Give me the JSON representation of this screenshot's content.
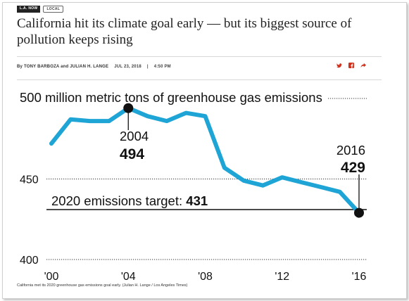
{
  "tags": {
    "section": "L.A. NOW",
    "subsection": "LOCAL"
  },
  "headline": "California hit its climate goal early — but its biggest source of pollution keeps rising",
  "byline": {
    "prefix": "By",
    "authors": "TONY BARBOZA and JULIAN H. LANGE",
    "date": "JUL 23, 2018",
    "separator": "|",
    "time": "4:50 PM"
  },
  "share": {
    "twitter_icon": "twitter-icon",
    "facebook_icon": "facebook-icon",
    "share_icon": "share-arrow-icon"
  },
  "colors": {
    "line": "#1ea5d6",
    "text": "#111111",
    "accent": "#d0321e"
  },
  "chart_data": {
    "type": "line",
    "title": "500 million metric tons of greenhouse gas emissions",
    "x": [
      2000,
      2001,
      2002,
      2003,
      2004,
      2005,
      2006,
      2007,
      2008,
      2009,
      2010,
      2011,
      2012,
      2013,
      2014,
      2015,
      2016
    ],
    "series": [
      {
        "values": [
          472,
          487,
          486,
          486,
          494,
          489,
          486,
          491,
          489,
          457,
          449,
          446,
          451,
          448,
          445,
          442,
          429
        ]
      }
    ],
    "xlim": [
      2000,
      2016
    ],
    "ylim": [
      400,
      500
    ],
    "x_tick_labels": [
      "'00",
      "'04",
      "'08",
      "'12",
      "'16"
    ],
    "x_tick_values": [
      2000,
      2004,
      2008,
      2012,
      2016
    ],
    "y_tick_labels": [
      "400",
      "450"
    ],
    "y_tick_values": [
      400,
      450
    ],
    "annotations": [
      {
        "year_label": "2004",
        "value_label": "494",
        "x": 2004,
        "y": 494
      },
      {
        "year_label": "2016",
        "value_label": "429",
        "x": 2016,
        "y": 429
      }
    ],
    "target": {
      "label": "2020 emissions target: ",
      "value_label": "431",
      "y": 431
    }
  },
  "caption": "California met its 2020 greenhouse gas emissions goal early. (Julian H. Lange / Los Angeles Times)"
}
